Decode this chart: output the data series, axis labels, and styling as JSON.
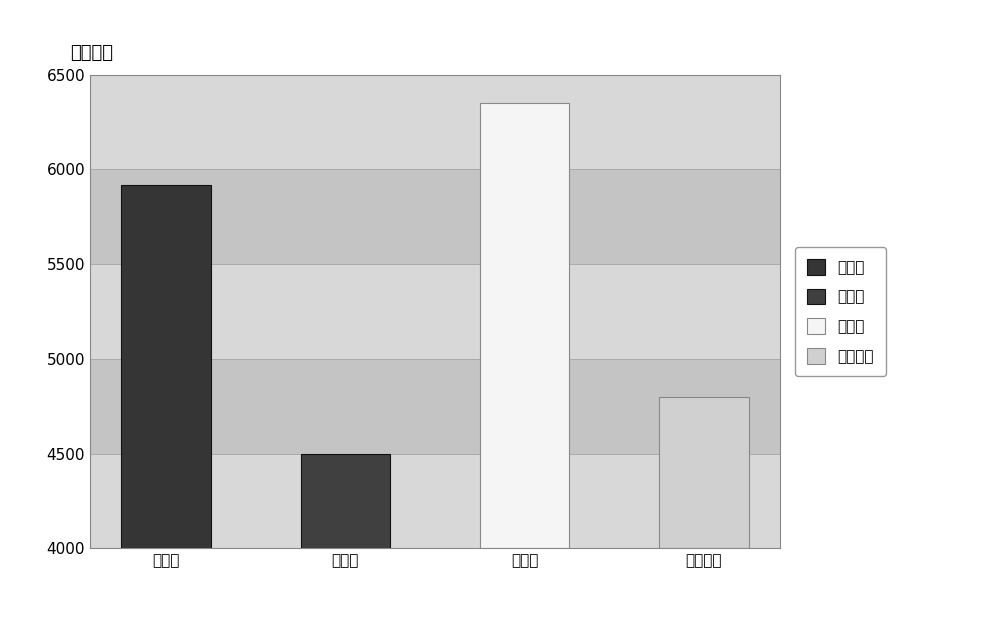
{
  "categories": [
    "栖需组",
    "梁山组",
    "黄龙组",
    "韩家店组"
  ],
  "values": [
    5920,
    4500,
    6350,
    4800
  ],
  "bar_colors": [
    "#353535",
    "#404040",
    "#f5f5f5",
    "#d0d0d0"
  ],
  "bar_edge_colors": [
    "#111111",
    "#111111",
    "#888888",
    "#888888"
  ],
  "legend_labels": [
    "栖需组",
    "梁山组",
    "黄龙组",
    "韩家店组"
  ],
  "legend_colors": [
    "#353535",
    "#404040",
    "#f5f5f5",
    "#d0d0d0"
  ],
  "legend_edge_colors": [
    "#111111",
    "#111111",
    "#888888",
    "#888888"
  ],
  "title": "平均速度",
  "ylim": [
    4000,
    6500
  ],
  "yticks": [
    4000,
    4500,
    5000,
    5500,
    6000,
    6500
  ],
  "figure_bg": "#ffffff",
  "plot_bg": "#c8c8c8",
  "band_colors": [
    "#d8d8d8",
    "#c4c4c4"
  ],
  "title_fontsize": 13,
  "axis_fontsize": 11,
  "tick_fontsize": 11,
  "bar_width": 0.5,
  "legend_fontsize": 11
}
